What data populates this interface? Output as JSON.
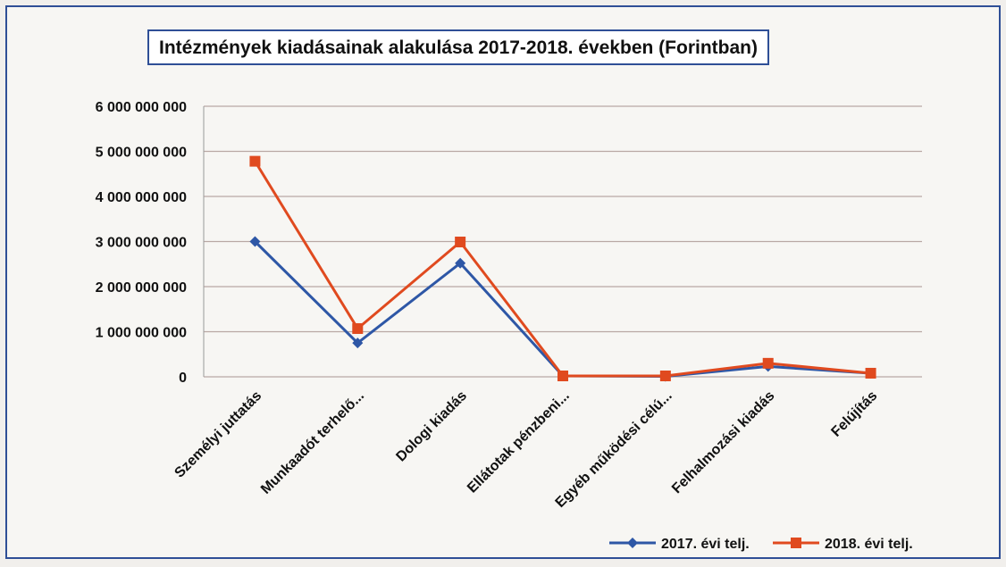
{
  "chart_data": {
    "type": "line",
    "title": "Intézmények kiadásainak alakulása 2017-2018. években (Forintban)",
    "categories": [
      "Személyi juttatás",
      "Munkaadót terhelő...",
      "Dologi kiadás",
      "Ellátotak pénzbeni...",
      "Egyéb működési célú...",
      "Felhalmozási kiadás",
      "Felújítás"
    ],
    "y_ticks": [
      "0",
      "1 000 000 000",
      "2 000 000 000",
      "3 000 000 000",
      "4 000 000 000",
      "5 000 000 000",
      "6 000 000 000"
    ],
    "ylim": [
      0,
      6000000000
    ],
    "grid": true,
    "legend_position": "bottom-right",
    "series": [
      {
        "name": "2017. évi telj.",
        "color": "#2e57a6",
        "marker": "diamond",
        "values": [
          3000000000,
          750000000,
          2520000000,
          20000000,
          10000000,
          230000000,
          80000000
        ]
      },
      {
        "name": "2018. évi telj.",
        "color": "#e04a1f",
        "marker": "square",
        "values": [
          4780000000,
          1070000000,
          2990000000,
          20000000,
          20000000,
          300000000,
          80000000
        ]
      }
    ]
  }
}
